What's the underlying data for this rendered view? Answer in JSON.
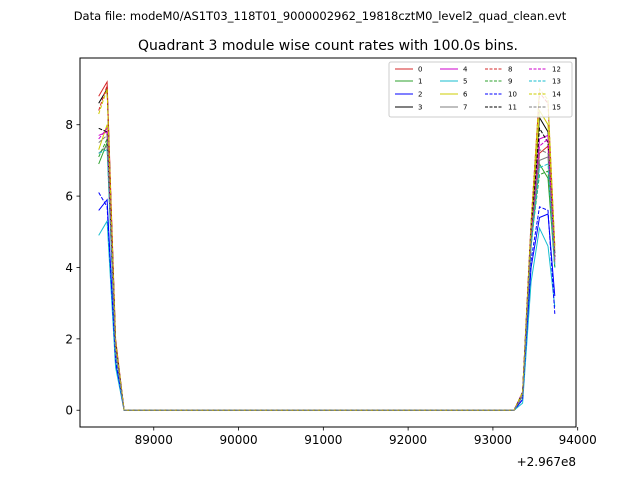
{
  "chart_data": {
    "type": "line",
    "suptitle": "Data file: modeM0/AS1T03_118T01_9000002962_19818cztM0_level2_quad_clean.evt",
    "title": "Quadrant 3 module wise count rates with 100.0s bins.",
    "xlabel": "",
    "ylabel": "",
    "x_offset_label": "+2.967e8",
    "xlim": [
      88130,
      93980
    ],
    "ylim": [
      -0.47,
      9.87
    ],
    "xticks": [
      89000,
      90000,
      91000,
      92000,
      93000,
      94000
    ],
    "xtick_labels": [
      "89000",
      "90000",
      "91000",
      "92000",
      "93000",
      "94000"
    ],
    "yticks": [
      0,
      2,
      4,
      6,
      8
    ],
    "ytick_labels": [
      "0",
      "2",
      "4",
      "6",
      "8"
    ],
    "grid": false,
    "legend_position": "top-right",
    "x": [
      88350,
      88450,
      88550,
      88650,
      88750,
      88850,
      88950,
      89050,
      89150,
      89250,
      89350,
      89450,
      89550,
      89650,
      89750,
      89850,
      89950,
      90050,
      90150,
      90250,
      90350,
      90450,
      90550,
      90650,
      90750,
      90850,
      90950,
      91050,
      91150,
      91250,
      91350,
      91450,
      91550,
      91650,
      91750,
      91850,
      91950,
      92050,
      92150,
      92250,
      92350,
      92450,
      92550,
      92650,
      92750,
      92850,
      92950,
      93050,
      93150,
      93250,
      93350,
      93450,
      93550,
      93650,
      93730
    ],
    "series": [
      {
        "name": "0",
        "color": "#d62728",
        "dash": "solid",
        "values": [
          8.8,
          9.2,
          2.0,
          0,
          0,
          0,
          0,
          0,
          0,
          0,
          0,
          0,
          0,
          0,
          0,
          0,
          0,
          0,
          0,
          0,
          0,
          0,
          0,
          0,
          0,
          0,
          0,
          0,
          0,
          0,
          0,
          0,
          0,
          0,
          0,
          0,
          0,
          0,
          0,
          0,
          0,
          0,
          0,
          0,
          0,
          0,
          0,
          0,
          0,
          0,
          0.5,
          4.8,
          7.2,
          7.4,
          4.3
        ]
      },
      {
        "name": "1",
        "color": "#2ca02c",
        "dash": "solid",
        "values": [
          6.9,
          7.5,
          1.6,
          0,
          0,
          0,
          0,
          0,
          0,
          0,
          0,
          0,
          0,
          0,
          0,
          0,
          0,
          0,
          0,
          0,
          0,
          0,
          0,
          0,
          0,
          0,
          0,
          0,
          0,
          0,
          0,
          0,
          0,
          0,
          0,
          0,
          0,
          0,
          0,
          0,
          0,
          0,
          0,
          0,
          0,
          0,
          0,
          0,
          0,
          0,
          0.4,
          4.6,
          6.9,
          6.5,
          4.0
        ]
      },
      {
        "name": "2",
        "color": "#0000ff",
        "dash": "solid",
        "values": [
          5.6,
          5.9,
          1.3,
          0,
          0,
          0,
          0,
          0,
          0,
          0,
          0,
          0,
          0,
          0,
          0,
          0,
          0,
          0,
          0,
          0,
          0,
          0,
          0,
          0,
          0,
          0,
          0,
          0,
          0,
          0,
          0,
          0,
          0,
          0,
          0,
          0,
          0,
          0,
          0,
          0,
          0,
          0,
          0,
          0,
          0,
          0,
          0,
          0,
          0,
          0,
          0.3,
          4.0,
          5.4,
          5.5,
          3.2
        ]
      },
      {
        "name": "3",
        "color": "#000000",
        "dash": "solid",
        "values": [
          8.6,
          9.0,
          1.9,
          0,
          0,
          0,
          0,
          0,
          0,
          0,
          0,
          0,
          0,
          0,
          0,
          0,
          0,
          0,
          0,
          0,
          0,
          0,
          0,
          0,
          0,
          0,
          0,
          0,
          0,
          0,
          0,
          0,
          0,
          0,
          0,
          0,
          0,
          0,
          0,
          0,
          0,
          0,
          0,
          0,
          0,
          0,
          0,
          0,
          0,
          0,
          0.5,
          5.2,
          8.2,
          7.8,
          4.4
        ]
      },
      {
        "name": "4",
        "color": "#cc00cc",
        "dash": "solid",
        "values": [
          7.7,
          7.8,
          1.7,
          0,
          0,
          0,
          0,
          0,
          0,
          0,
          0,
          0,
          0,
          0,
          0,
          0,
          0,
          0,
          0,
          0,
          0,
          0,
          0,
          0,
          0,
          0,
          0,
          0,
          0,
          0,
          0,
          0,
          0,
          0,
          0,
          0,
          0,
          0,
          0,
          0,
          0,
          0,
          0,
          0,
          0,
          0,
          0,
          0,
          0,
          0,
          0.5,
          4.9,
          7.6,
          7.7,
          4.2
        ]
      },
      {
        "name": "5",
        "color": "#17becf",
        "dash": "solid",
        "values": [
          4.9,
          5.3,
          1.2,
          0,
          0,
          0,
          0,
          0,
          0,
          0,
          0,
          0,
          0,
          0,
          0,
          0,
          0,
          0,
          0,
          0,
          0,
          0,
          0,
          0,
          0,
          0,
          0,
          0,
          0,
          0,
          0,
          0,
          0,
          0,
          0,
          0,
          0,
          0,
          0,
          0,
          0,
          0,
          0,
          0,
          0,
          0,
          0,
          0,
          0,
          0,
          0.2,
          3.6,
          5.1,
          4.6,
          2.9
        ]
      },
      {
        "name": "6",
        "color": "#cccc00",
        "dash": "solid",
        "values": [
          7.3,
          8.0,
          1.8,
          0,
          0,
          0,
          0,
          0,
          0,
          0,
          0,
          0,
          0,
          0,
          0,
          0,
          0,
          0,
          0,
          0,
          0,
          0,
          0,
          0,
          0,
          0,
          0,
          0,
          0,
          0,
          0,
          0,
          0,
          0,
          0,
          0,
          0,
          0,
          0,
          0,
          0,
          0,
          0,
          0,
          0,
          0,
          0,
          0,
          0,
          0,
          0.5,
          5.0,
          8.4,
          8.0,
          4.5
        ]
      },
      {
        "name": "7",
        "color": "#7f7f7f",
        "dash": "solid",
        "values": [
          7.2,
          7.4,
          1.7,
          0,
          0,
          0,
          0,
          0,
          0,
          0,
          0,
          0,
          0,
          0,
          0,
          0,
          0,
          0,
          0,
          0,
          0,
          0,
          0,
          0,
          0,
          0,
          0,
          0,
          0,
          0,
          0,
          0,
          0,
          0,
          0,
          0,
          0,
          0,
          0,
          0,
          0,
          0,
          0,
          0,
          0,
          0,
          0,
          0,
          0,
          0,
          0.4,
          4.8,
          7.0,
          7.1,
          4.1
        ]
      },
      {
        "name": "8",
        "color": "#d62728",
        "dash": "dashed",
        "values": [
          8.4,
          9.1,
          1.9,
          0,
          0,
          0,
          0,
          0,
          0,
          0,
          0,
          0,
          0,
          0,
          0,
          0,
          0,
          0,
          0,
          0,
          0,
          0,
          0,
          0,
          0,
          0,
          0,
          0,
          0,
          0,
          0,
          0,
          0,
          0,
          0,
          0,
          0,
          0,
          0,
          0,
          0,
          0,
          0,
          0,
          0,
          0,
          0,
          0,
          0,
          0,
          0.5,
          5.3,
          8.9,
          8.6,
          4.6
        ]
      },
      {
        "name": "9",
        "color": "#2ca02c",
        "dash": "dashed",
        "values": [
          7.1,
          7.6,
          1.6,
          0,
          0,
          0,
          0,
          0,
          0,
          0,
          0,
          0,
          0,
          0,
          0,
          0,
          0,
          0,
          0,
          0,
          0,
          0,
          0,
          0,
          0,
          0,
          0,
          0,
          0,
          0,
          0,
          0,
          0,
          0,
          0,
          0,
          0,
          0,
          0,
          0,
          0,
          0,
          0,
          0,
          0,
          0,
          0,
          0,
          0,
          0,
          0.4,
          4.7,
          6.6,
          6.7,
          4.0
        ]
      },
      {
        "name": "10",
        "color": "#0000ff",
        "dash": "dashed",
        "values": [
          6.1,
          5.7,
          1.4,
          0,
          0,
          0,
          0,
          0,
          0,
          0,
          0,
          0,
          0,
          0,
          0,
          0,
          0,
          0,
          0,
          0,
          0,
          0,
          0,
          0,
          0,
          0,
          0,
          0,
          0,
          0,
          0,
          0,
          0,
          0,
          0,
          0,
          0,
          0,
          0,
          0,
          0,
          0,
          0,
          0,
          0,
          0,
          0,
          0,
          0,
          0,
          0.3,
          4.2,
          5.7,
          5.6,
          2.7
        ]
      },
      {
        "name": "11",
        "color": "#000000",
        "dash": "dashed",
        "values": [
          7.9,
          7.8,
          1.8,
          0,
          0,
          0,
          0,
          0,
          0,
          0,
          0,
          0,
          0,
          0,
          0,
          0,
          0,
          0,
          0,
          0,
          0,
          0,
          0,
          0,
          0,
          0,
          0,
          0,
          0,
          0,
          0,
          0,
          0,
          0,
          0,
          0,
          0,
          0,
          0,
          0,
          0,
          0,
          0,
          0,
          0,
          0,
          0,
          0,
          0,
          0,
          0.5,
          5.0,
          7.9,
          7.5,
          4.3
        ]
      },
      {
        "name": "12",
        "color": "#cc00cc",
        "dash": "dashed",
        "values": [
          7.6,
          7.9,
          1.7,
          0,
          0,
          0,
          0,
          0,
          0,
          0,
          0,
          0,
          0,
          0,
          0,
          0,
          0,
          0,
          0,
          0,
          0,
          0,
          0,
          0,
          0,
          0,
          0,
          0,
          0,
          0,
          0,
          0,
          0,
          0,
          0,
          0,
          0,
          0,
          0,
          0,
          0,
          0,
          0,
          0,
          0,
          0,
          0,
          0,
          0,
          0,
          0.5,
          4.9,
          7.4,
          7.6,
          4.2
        ]
      },
      {
        "name": "13",
        "color": "#17becf",
        "dash": "dashed",
        "values": [
          7.2,
          7.3,
          1.6,
          0,
          0,
          0,
          0,
          0,
          0,
          0,
          0,
          0,
          0,
          0,
          0,
          0,
          0,
          0,
          0,
          0,
          0,
          0,
          0,
          0,
          0,
          0,
          0,
          0,
          0,
          0,
          0,
          0,
          0,
          0,
          0,
          0,
          0,
          0,
          0,
          0,
          0,
          0,
          0,
          0,
          0,
          0,
          0,
          0,
          0,
          0,
          0.4,
          4.6,
          6.8,
          6.9,
          4.0
        ]
      },
      {
        "name": "14",
        "color": "#cccc00",
        "dash": "dashed",
        "values": [
          8.3,
          9.0,
          1.9,
          0,
          0,
          0,
          0,
          0,
          0,
          0,
          0,
          0,
          0,
          0,
          0,
          0,
          0,
          0,
          0,
          0,
          0,
          0,
          0,
          0,
          0,
          0,
          0,
          0,
          0,
          0,
          0,
          0,
          0,
          0,
          0,
          0,
          0,
          0,
          0,
          0,
          0,
          0,
          0,
          0,
          0,
          0,
          0,
          0,
          0,
          0,
          0.5,
          5.2,
          9.0,
          8.7,
          4.6
        ]
      },
      {
        "name": "15",
        "color": "#7f7f7f",
        "dash": "dashed",
        "values": [
          7.5,
          7.7,
          1.7,
          0,
          0,
          0,
          0,
          0,
          0,
          0,
          0,
          0,
          0,
          0,
          0,
          0,
          0,
          0,
          0,
          0,
          0,
          0,
          0,
          0,
          0,
          0,
          0,
          0,
          0,
          0,
          0,
          0,
          0,
          0,
          0,
          0,
          0,
          0,
          0,
          0,
          0,
          0,
          0,
          0,
          0,
          0,
          0,
          0,
          0,
          0,
          0.4,
          4.8,
          7.3,
          7.2,
          4.1
        ]
      }
    ]
  }
}
